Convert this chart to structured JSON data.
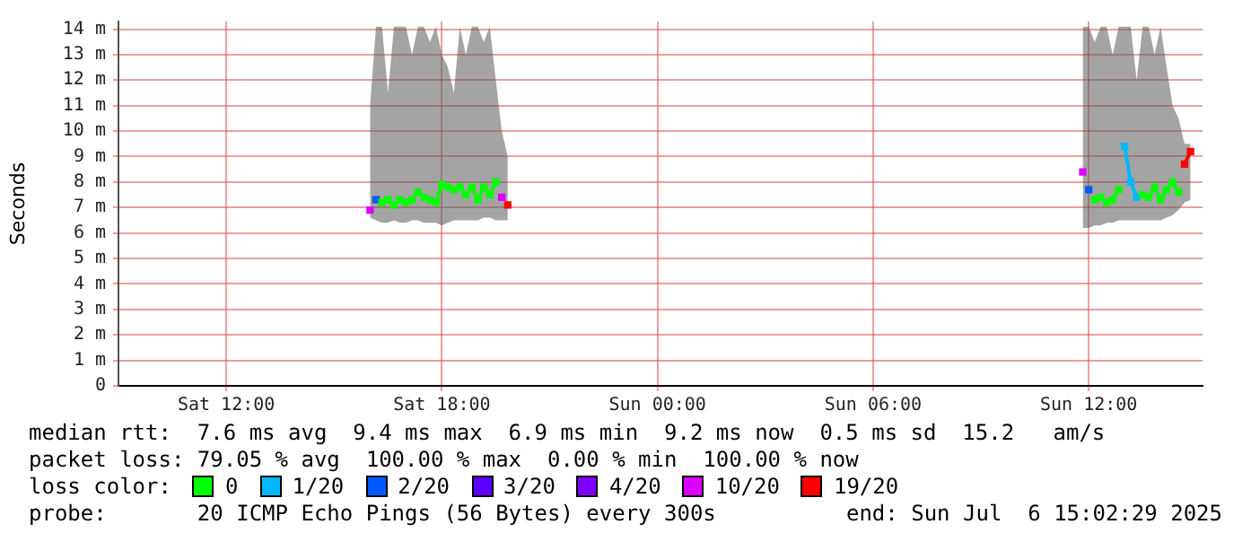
{
  "chart_data": {
    "type": "line",
    "ylabel": "Seconds",
    "legend_title": "loss color:",
    "legend": "bottom",
    "grid": true,
    "marker": "square",
    "line_style": "solid",
    "xlim": [
      "2025-07-05T09:00",
      "2025-07-06T15:10"
    ],
    "xticks": [
      {
        "value": "2025-07-05T12:00",
        "label": "Sat 12:00"
      },
      {
        "value": "2025-07-05T18:00",
        "label": "Sat 18:00"
      },
      {
        "value": "2025-07-06T00:00",
        "label": "Sun 00:00"
      },
      {
        "value": "2025-07-06T06:00",
        "label": "Sun 06:00"
      },
      {
        "value": "2025-07-06T12:00",
        "label": "Sun 12:00"
      }
    ],
    "ylim": [
      0,
      14.3
    ],
    "yticks": [
      0,
      {
        "value": 1,
        "label": "1 m"
      },
      {
        "value": 2,
        "label": "2 m"
      },
      {
        "value": 3,
        "label": "3 m"
      },
      {
        "value": 4,
        "label": "4 m"
      },
      {
        "value": 5,
        "label": "5 m"
      },
      {
        "value": 6,
        "label": "6 m"
      },
      {
        "value": 7,
        "label": "7 m"
      },
      {
        "value": 8,
        "label": "8 m"
      },
      {
        "value": 9,
        "label": "9 m"
      },
      {
        "value": 10,
        "label": "10 m"
      },
      {
        "value": 11,
        "label": "11 m"
      },
      {
        "value": 12,
        "label": "12 m"
      },
      {
        "value": 13,
        "label": "13 m"
      },
      {
        "value": 14,
        "label": "14 m"
      }
    ],
    "x": [
      "2025-07-05T16:00",
      "2025-07-05T16:10",
      "2025-07-05T16:20",
      "2025-07-05T16:30",
      "2025-07-05T16:40",
      "2025-07-05T16:50",
      "2025-07-05T17:00",
      "2025-07-05T17:10",
      "2025-07-05T17:20",
      "2025-07-05T17:30",
      "2025-07-05T17:40",
      "2025-07-05T17:50",
      "2025-07-05T18:00",
      "2025-07-05T18:10",
      "2025-07-05T18:20",
      "2025-07-05T18:30",
      "2025-07-05T18:40",
      "2025-07-05T18:50",
      "2025-07-05T19:00",
      "2025-07-05T19:10",
      "2025-07-05T19:20",
      "2025-07-05T19:30",
      "2025-07-05T19:40",
      "2025-07-05T19:50",
      "2025-07-06T11:50",
      "2025-07-06T12:00",
      "2025-07-06T12:10",
      "2025-07-06T12:20",
      "2025-07-06T12:30",
      "2025-07-06T12:40",
      "2025-07-06T12:50",
      "2025-07-06T13:00",
      "2025-07-06T13:10",
      "2025-07-06T13:20",
      "2025-07-06T13:30",
      "2025-07-06T13:40",
      "2025-07-06T13:50",
      "2025-07-06T14:00",
      "2025-07-06T14:10",
      "2025-07-06T14:20",
      "2025-07-06T14:30",
      "2025-07-06T14:40",
      "2025-07-06T14:50"
    ],
    "series": [
      {
        "name": "0",
        "color": "#00ff00",
        "values": [
          null,
          null,
          7.2,
          7.3,
          7.1,
          7.3,
          7.2,
          7.3,
          7.6,
          7.4,
          7.3,
          7.2,
          7.9,
          7.8,
          7.7,
          7.8,
          7.5,
          7.8,
          7.3,
          7.8,
          7.5,
          8.0,
          null,
          null,
          null,
          null,
          7.3,
          7.4,
          7.2,
          7.3,
          7.7,
          null,
          null,
          null,
          7.5,
          7.4,
          7.8,
          7.3,
          7.7,
          8.0,
          7.6,
          null,
          null
        ],
        "upper": [
          11.0,
          14.1,
          14.1,
          11.5,
          14.1,
          14.1,
          14.1,
          13.0,
          14.1,
          14.1,
          13.5,
          14.1,
          13.0,
          12.5,
          11.5,
          14.1,
          13.0,
          14.1,
          14.1,
          13.5,
          14.1,
          12.0,
          10.0,
          9.0,
          14.1,
          14.1,
          13.5,
          14.1,
          14.1,
          13.0,
          14.1,
          14.1,
          14.1,
          12.0,
          14.1,
          14.1,
          13.0,
          14.1,
          12.5,
          11.0,
          10.5,
          9.5,
          9.5
        ],
        "lower": [
          6.6,
          6.5,
          6.4,
          6.4,
          6.5,
          6.4,
          6.4,
          6.5,
          6.5,
          6.4,
          6.4,
          6.4,
          6.3,
          6.4,
          6.5,
          6.5,
          6.5,
          6.5,
          6.5,
          6.6,
          6.6,
          6.5,
          6.5,
          6.5,
          6.2,
          6.2,
          6.3,
          6.3,
          6.4,
          6.4,
          6.5,
          6.5,
          6.5,
          6.5,
          6.5,
          6.5,
          6.5,
          6.5,
          6.6,
          6.7,
          6.9,
          7.2,
          7.3
        ]
      },
      {
        "name": "1/20",
        "color": "#00b8ff",
        "values": [
          null,
          null,
          null,
          null,
          null,
          null,
          null,
          null,
          null,
          null,
          null,
          null,
          null,
          null,
          null,
          null,
          null,
          null,
          null,
          null,
          null,
          null,
          null,
          null,
          null,
          null,
          null,
          null,
          null,
          null,
          null,
          9.4,
          8.0,
          7.4,
          null,
          null,
          null,
          null,
          null,
          null,
          null,
          null,
          null
        ]
      },
      {
        "name": "2/20",
        "type": "scatter",
        "color": "#0059ff",
        "values": [
          null,
          7.3,
          null,
          null,
          null,
          null,
          null,
          null,
          null,
          null,
          null,
          null,
          null,
          null,
          null,
          null,
          null,
          null,
          null,
          null,
          null,
          null,
          null,
          null,
          null,
          7.7,
          null,
          null,
          null,
          null,
          null,
          null,
          null,
          null,
          null,
          null,
          null,
          null,
          null,
          null,
          null,
          null,
          null
        ]
      },
      {
        "name": "3/20",
        "color": "#5e00ff",
        "values": [
          null,
          null,
          null,
          null,
          null,
          null,
          null,
          null,
          null,
          null,
          null,
          null,
          null,
          null,
          null,
          null,
          null,
          null,
          null,
          null,
          null,
          null,
          null,
          null,
          null,
          null,
          null,
          null,
          null,
          null,
          null,
          null,
          null,
          null,
          null,
          null,
          null,
          null,
          null,
          null,
          null,
          null,
          null
        ]
      },
      {
        "name": "4/20",
        "color": "#7e00ff",
        "values": [
          null,
          null,
          null,
          null,
          null,
          null,
          null,
          null,
          null,
          null,
          null,
          null,
          null,
          null,
          null,
          null,
          null,
          null,
          null,
          null,
          null,
          null,
          null,
          null,
          null,
          null,
          null,
          null,
          null,
          null,
          null,
          null,
          null,
          null,
          null,
          null,
          null,
          null,
          null,
          null,
          null,
          null,
          null
        ]
      },
      {
        "name": "10/20",
        "type": "scatter",
        "color": "#dd00ff",
        "values": [
          6.9,
          null,
          null,
          null,
          null,
          null,
          null,
          null,
          null,
          null,
          null,
          null,
          null,
          null,
          null,
          null,
          null,
          null,
          null,
          null,
          null,
          null,
          7.4,
          null,
          8.4,
          null,
          null,
          null,
          null,
          null,
          null,
          null,
          null,
          null,
          null,
          null,
          null,
          null,
          null,
          null,
          null,
          null,
          null
        ]
      },
      {
        "name": "19/20",
        "color": "#ff0000",
        "values": [
          null,
          null,
          null,
          null,
          null,
          null,
          null,
          null,
          null,
          null,
          null,
          null,
          null,
          null,
          null,
          null,
          null,
          null,
          null,
          null,
          null,
          null,
          null,
          7.1,
          null,
          null,
          null,
          null,
          null,
          null,
          null,
          null,
          null,
          null,
          null,
          null,
          null,
          null,
          null,
          null,
          null,
          8.7,
          9.2
        ]
      }
    ],
    "annotations": [
      "median rtt:  7.6 ms avg  9.4 ms max  6.9 ms min  9.2 ms now  0.5 ms sd  15.2   am/s",
      "packet loss: 79.05 % avg  100.00 % max  0.00 % min  100.00 % now",
      "probe:       20 ICMP Echo Pings (56 Bytes) every 300s",
      "end: Sun Jul  6 15:02:29 2025"
    ]
  }
}
